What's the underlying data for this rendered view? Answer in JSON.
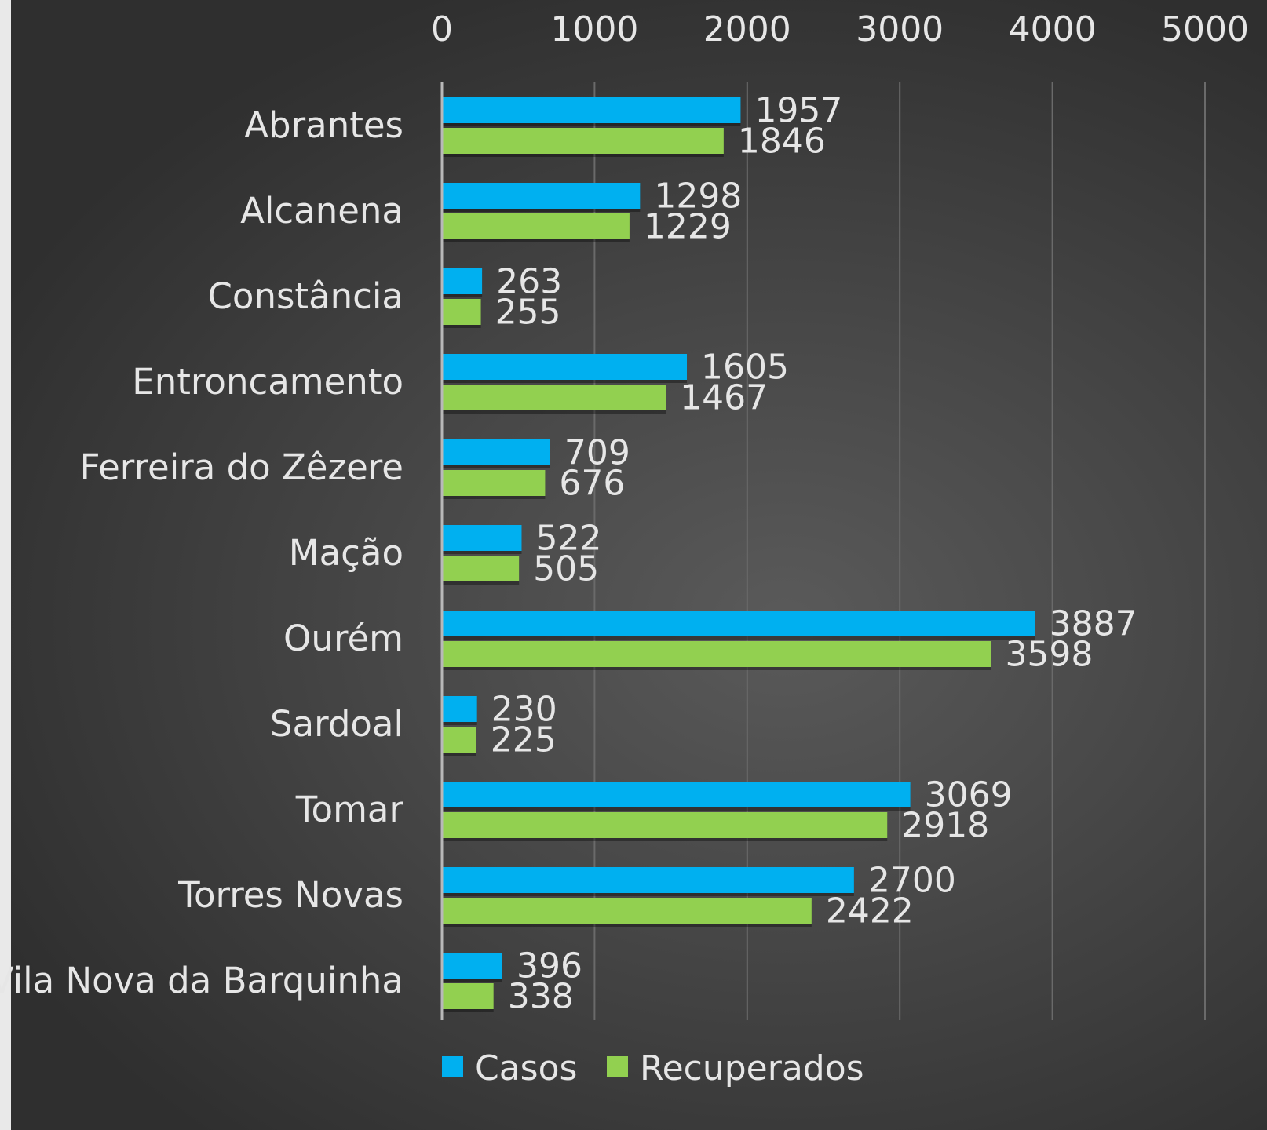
{
  "chart_data": {
    "type": "bar",
    "orientation": "horizontal",
    "categories": [
      "Abrantes",
      "Alcanena",
      "Constância",
      "Entroncamento",
      "Ferreira do Zêzere",
      "Mação",
      "Ourém",
      "Sardoal",
      "Tomar",
      "Torres Novas",
      "Vila Nova da Barquinha"
    ],
    "series": [
      {
        "name": "Casos",
        "color": "#00b0f0",
        "values": [
          1957,
          1298,
          263,
          1605,
          709,
          522,
          3887,
          230,
          3069,
          2700,
          396
        ]
      },
      {
        "name": "Recuperados",
        "color": "#92d050",
        "values": [
          1846,
          1229,
          255,
          1467,
          676,
          505,
          3598,
          225,
          2918,
          2422,
          338
        ]
      }
    ],
    "xlim": [
      0,
      5000
    ],
    "x_ticks": [
      0,
      1000,
      2000,
      3000,
      4000,
      5000
    ],
    "x_axis_position": "top",
    "grid": true,
    "legend_position": "bottom",
    "background_color": "#474747",
    "text_color": "#e6e6e6",
    "gridline_color": "#6a6a6a"
  }
}
